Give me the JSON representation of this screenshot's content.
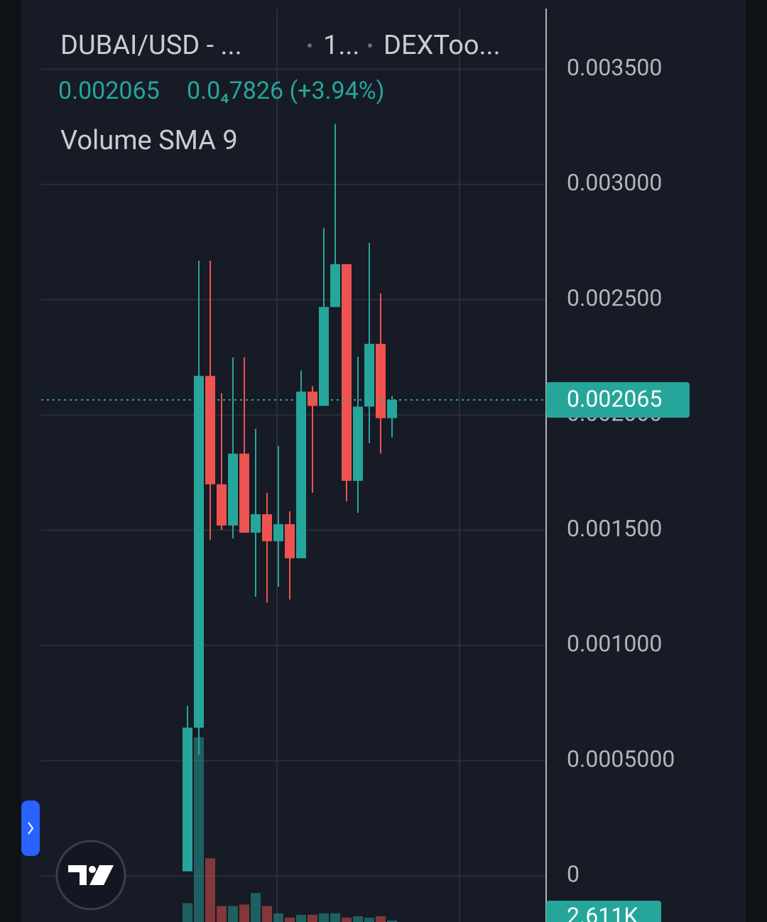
{
  "chart_data": {
    "type": "candlestick",
    "title": "DUBAI/USD - ...",
    "interval": "1...",
    "source": "DEXToo...",
    "change": "0.0₄7826 (+3.94%)",
    "indicator": "Volume SMA 9",
    "up_color": "#26a69a",
    "down_color": "#ef5350",
    "ylim": [
      -0.0002,
      0.0038
    ],
    "yticks": [
      0,
      {
        "value": 0.0005,
        "label": "0.0005000"
      },
      {
        "value": 0.001,
        "label": "0.001000"
      },
      {
        "value": 0.0015,
        "label": "0.001500"
      },
      {
        "value": 0.002,
        "label": "0.002000"
      },
      {
        "value": 0.0025,
        "label": "0.002500"
      },
      {
        "value": 0.003,
        "label": "0.003000"
      },
      {
        "value": 0.0035,
        "label": "0.003500"
      }
    ],
    "grid": true,
    "candles": [
      {
        "open": 2e-05,
        "high": 0.000738,
        "low": 2e-05,
        "close": 0.000643
      },
      {
        "open": 0.000643,
        "high": 0.002669,
        "low": 0.000525,
        "close": 0.002169
      },
      {
        "open": 0.002169,
        "high": 0.002669,
        "low": 0.001458,
        "close": 0.001699
      },
      {
        "open": 0.001699,
        "high": 0.002094,
        "low": 0.001501,
        "close": 0.00152
      },
      {
        "open": 0.00152,
        "high": 0.002249,
        "low": 0.001464,
        "close": 0.001832
      },
      {
        "open": 0.001832,
        "high": 0.002249,
        "low": 0.001489,
        "close": 0.001489
      },
      {
        "open": 0.001489,
        "high": 0.00194,
        "low": 0.001211,
        "close": 0.001569
      },
      {
        "open": 0.001569,
        "high": 0.001662,
        "low": 0.001186,
        "close": 0.001452
      },
      {
        "open": 0.001452,
        "high": 0.001866,
        "low": 0.001254,
        "close": 0.001526
      },
      {
        "open": 0.001526,
        "high": 0.001582,
        "low": 0.001199,
        "close": 0.001378
      },
      {
        "open": 0.001378,
        "high": 0.002193,
        "low": 0.001378,
        "close": 0.002101
      },
      {
        "open": 0.002101,
        "high": 0.002125,
        "low": 0.001662,
        "close": 0.002039
      },
      {
        "open": 0.002039,
        "high": 0.002811,
        "low": 0.002039,
        "close": 0.002468
      },
      {
        "open": 0.002468,
        "high": 0.003262,
        "low": 0.002468,
        "close": 0.002654
      },
      {
        "open": 0.002654,
        "high": 0.002654,
        "low": 0.001625,
        "close": 0.001714
      },
      {
        "open": 0.001714,
        "high": 0.002252,
        "low": 0.001575,
        "close": 0.002036
      },
      {
        "open": 0.002036,
        "high": 0.002746,
        "low": 0.001878,
        "close": 0.002308
      },
      {
        "open": 0.002308,
        "high": 0.002527,
        "low": 0.001832,
        "close": 0.001986
      },
      {
        "open": 0.001986,
        "high": 0.002082,
        "low": 0.001903,
        "close": 0.002065
      }
    ],
    "volume": {
      "values": [
        18300,
        168000,
        58800,
        15700,
        15700,
        17000,
        27400,
        15700,
        9100,
        5200,
        7800,
        7800,
        9100,
        9100,
        5200,
        6500,
        5200,
        6500,
        2611
      ],
      "value_labels": [
        null,
        null,
        null,
        null,
        null,
        null,
        null,
        null,
        null,
        null,
        null,
        null,
        null,
        null,
        null,
        null,
        null,
        null,
        "2.611K"
      ]
    }
  }
}
